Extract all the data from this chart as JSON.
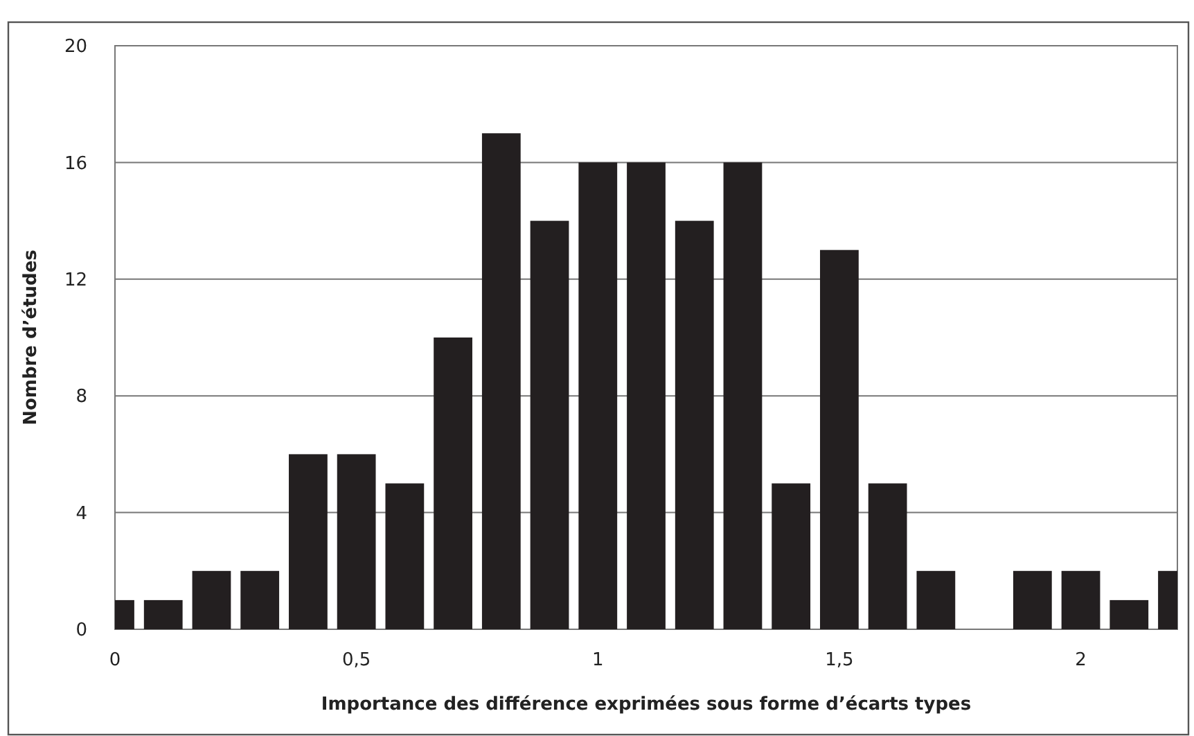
{
  "chart_data": {
    "type": "bar",
    "xlabel": "Importance des différence exprimées sous forme d’écarts types",
    "ylabel": "Nombre d’études",
    "x": [
      0,
      0.1,
      0.2,
      0.3,
      0.4,
      0.5,
      0.6,
      0.7,
      0.8,
      0.9,
      1,
      1.1,
      1.2,
      1.3,
      1.4,
      1.5,
      1.6,
      1.7,
      1.8,
      1.9,
      2,
      2.1,
      2.2
    ],
    "values": [
      1,
      1,
      2,
      2,
      6,
      6,
      5,
      10,
      17,
      14,
      16,
      16,
      14,
      16,
      5,
      13,
      5,
      2,
      0,
      2,
      2,
      1,
      2
    ],
    "color": "#231f20",
    "xlim": [
      0,
      2.2
    ],
    "xticks": [
      0,
      {
        "value": 0.5,
        "label": "0,5"
      },
      1,
      {
        "value": 1.5,
        "label": "1,5"
      },
      2
    ],
    "ylim": [
      0,
      20
    ],
    "yticks": [
      0,
      4,
      8,
      12,
      16,
      20
    ],
    "grid": "y"
  }
}
